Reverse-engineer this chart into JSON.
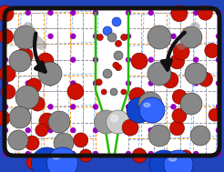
{
  "colors": {
    "orange": "#FF8800",
    "blue_lattice": "#5599FF",
    "purple": "#9900BB",
    "green": "#22BB00",
    "co2_center": "#888888",
    "co2_oxygen": "#CC1100",
    "ch4_dark": "#999999",
    "ch4_light": "#CCCCCC",
    "n2_dark": "#1144CC",
    "n2_light": "#3366FF",
    "arrow_dark": "#111111",
    "arrow_mid": "#555555",
    "border": "#111111",
    "bg_outside": "#2244BB",
    "bg_inside": "#ffffff"
  },
  "fig_w": 2.46,
  "fig_h": 1.89,
  "dpi": 100
}
